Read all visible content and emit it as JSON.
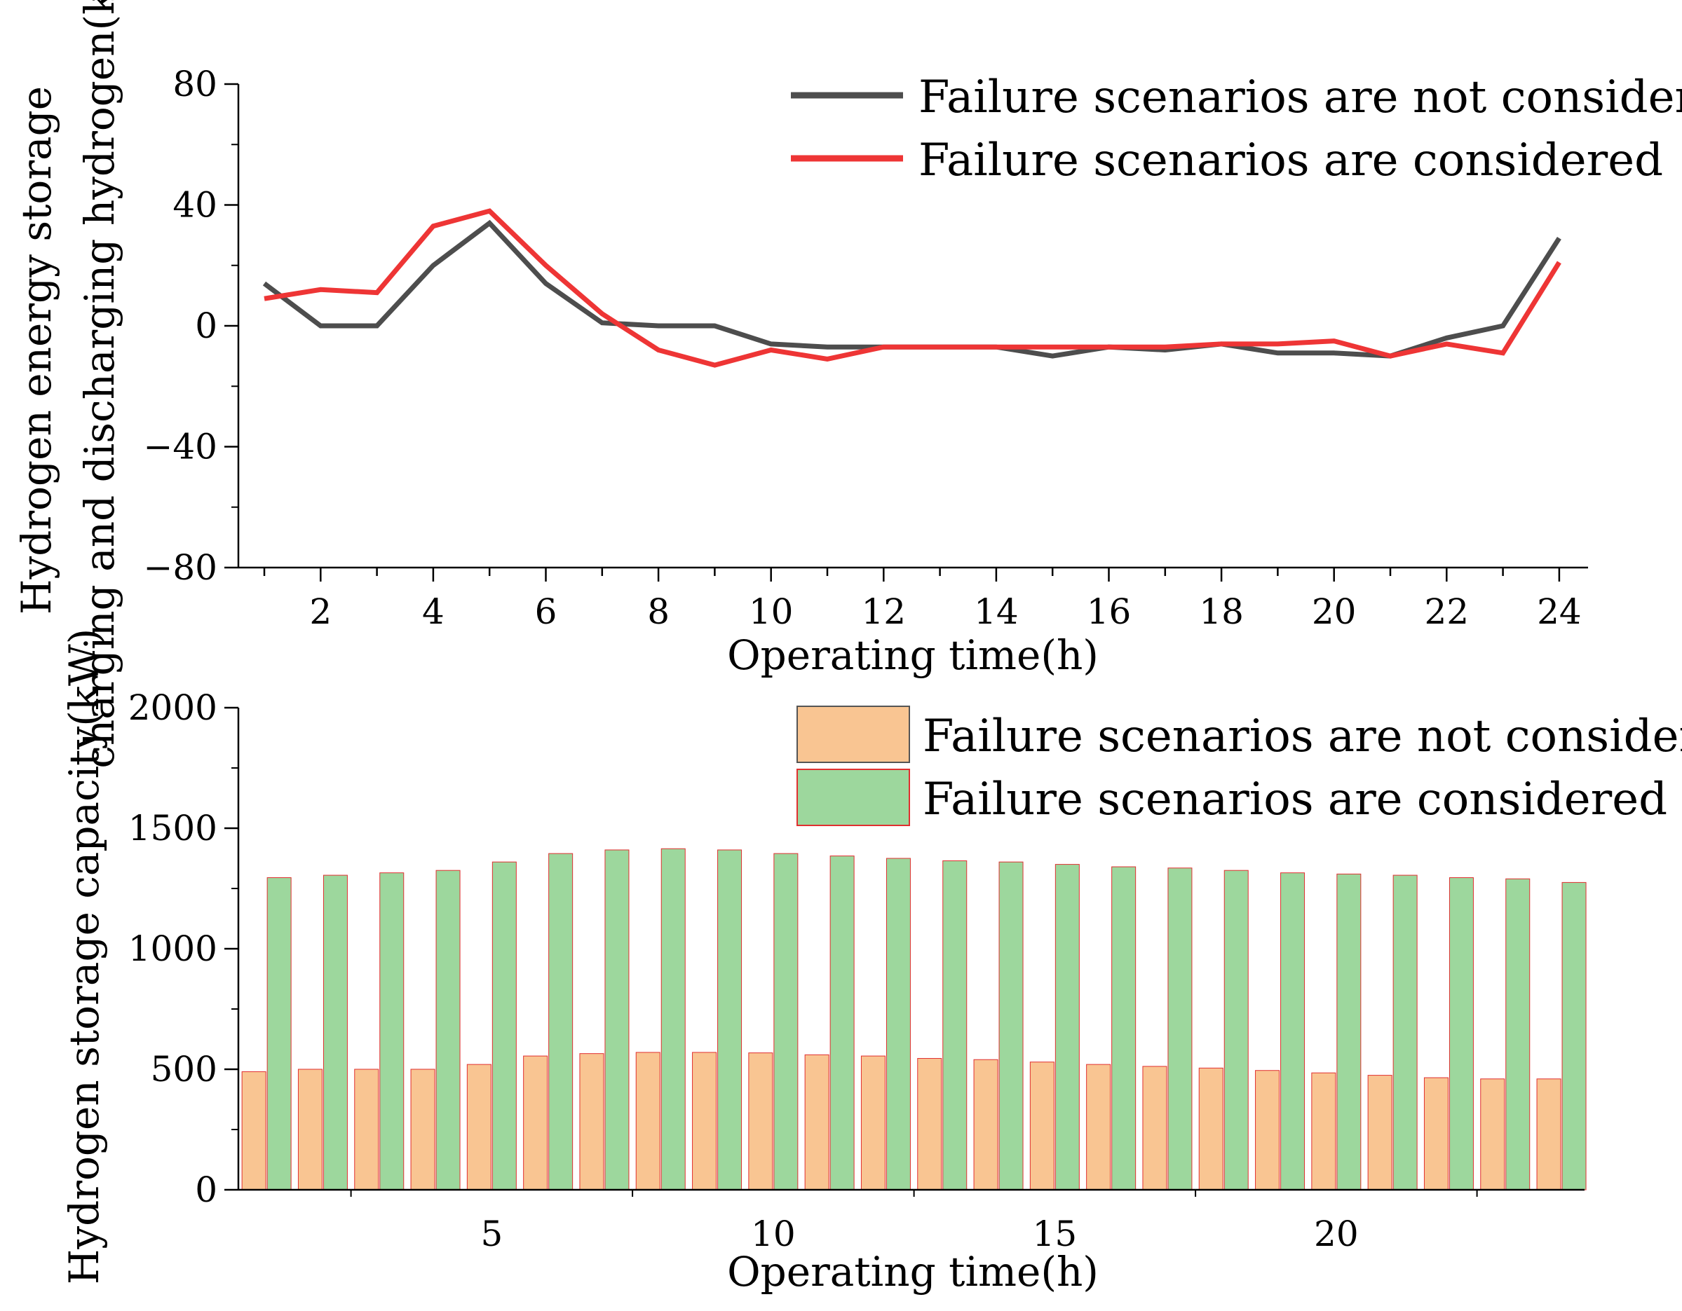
{
  "colors": {
    "not_considered_line": "#4d4d4d",
    "considered_line": "#ee3535",
    "not_considered_bar": "#f9c592",
    "considered_bar": "#9dd79d",
    "bar_edge": "#e03030"
  },
  "chart_data": [
    {
      "type": "line",
      "title": "",
      "xlabel": "Operating time(h)",
      "ylabel_line1": "Hydrogen energy storage",
      "ylabel_line2": "charging and discharging hydrogen(kW)",
      "xlim": [
        0.5,
        25
      ],
      "ylim": [
        -80,
        80
      ],
      "yticks": [
        -80,
        -40,
        0,
        40,
        80
      ],
      "ytick_labels": [
        "−80",
        "−40",
        "0",
        "40",
        "80"
      ],
      "xticks": [
        2,
        4,
        6,
        8,
        10,
        12,
        14,
        16,
        18,
        20,
        22,
        24
      ],
      "xtick_labels": [
        "2",
        "4",
        "6",
        "8",
        "10",
        "12",
        "14",
        "16",
        "18",
        "20",
        "22",
        "24"
      ],
      "legend_position": "top-right",
      "x": [
        1,
        2,
        3,
        4,
        5,
        6,
        7,
        8,
        9,
        10,
        11,
        12,
        13,
        14,
        15,
        16,
        17,
        18,
        19,
        20,
        21,
        22,
        23,
        24
      ],
      "series": [
        {
          "name": "Failure scenarios are not considered",
          "values": [
            14,
            0,
            0,
            20,
            34,
            14,
            1,
            0,
            0,
            -6,
            -7,
            -7,
            -7,
            -7,
            -10,
            -7,
            -8,
            -6,
            -9,
            -9,
            -10,
            -4,
            0,
            29
          ]
        },
        {
          "name": "Failure scenarios are considered",
          "values": [
            9,
            12,
            11,
            33,
            38,
            20,
            4,
            -8,
            -13,
            -8,
            -11,
            -7,
            -7,
            -7,
            -7,
            -7,
            -7,
            -6,
            -6,
            -5,
            -10,
            -6,
            -9,
            21
          ]
        }
      ]
    },
    {
      "type": "bar",
      "title": "",
      "xlabel": "Operating time(h)",
      "ylabel": "Hydrogen storage capacity(kW)",
      "xlim": [
        0.5,
        24.5
      ],
      "ylim": [
        0,
        2000
      ],
      "yticks": [
        0,
        500,
        1000,
        1500,
        2000
      ],
      "ytick_labels": [
        "0",
        "500",
        "1000",
        "1500",
        "2000"
      ],
      "xticks": [
        5,
        10,
        15,
        20
      ],
      "xtick_labels": [
        "5",
        "10",
        "15",
        "20"
      ],
      "legend_position": "top-right",
      "categories": [
        1,
        2,
        3,
        4,
        5,
        6,
        7,
        8,
        9,
        10,
        11,
        12,
        13,
        14,
        15,
        16,
        17,
        18,
        19,
        20,
        21,
        22,
        23,
        24
      ],
      "series": [
        {
          "name": "Failure scenarios are not considered",
          "values": [
            490,
            500,
            500,
            500,
            520,
            555,
            565,
            570,
            570,
            568,
            560,
            555,
            545,
            540,
            530,
            520,
            512,
            505,
            495,
            485,
            475,
            465,
            460,
            460
          ]
        },
        {
          "name": "Failure scenarios are considered",
          "values": [
            1295,
            1305,
            1315,
            1325,
            1360,
            1395,
            1410,
            1415,
            1410,
            1395,
            1385,
            1375,
            1365,
            1360,
            1350,
            1340,
            1335,
            1325,
            1315,
            1310,
            1305,
            1295,
            1290,
            1275
          ]
        }
      ]
    }
  ]
}
